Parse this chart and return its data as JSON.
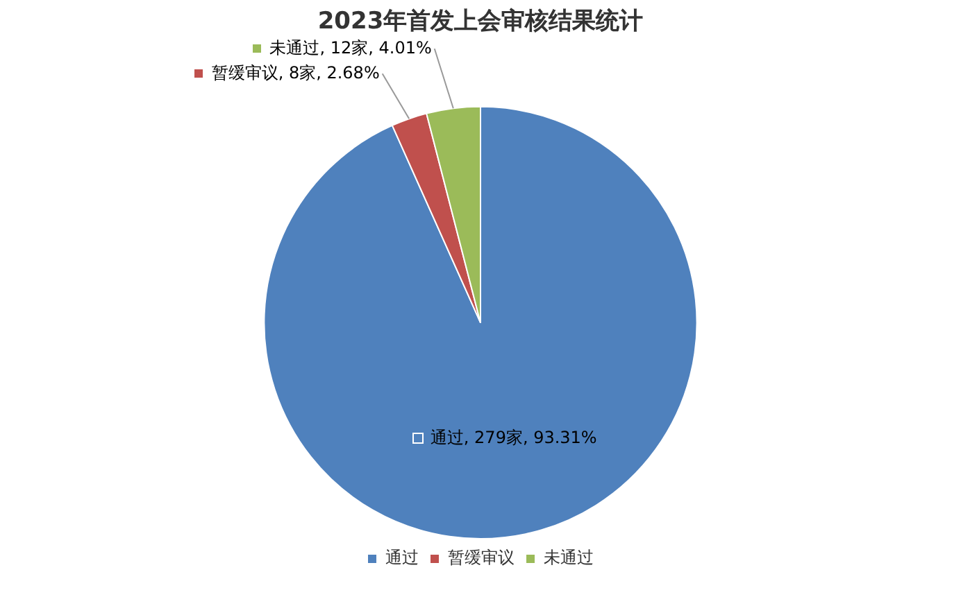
{
  "chart_data": {
    "type": "pie",
    "title": "2023年首发上会审核结果统计",
    "categories": [
      "通过",
      "暂缓审议",
      "未通过"
    ],
    "values": [
      279,
      8,
      12
    ],
    "colors": [
      "#4f81bd",
      "#c0504d",
      "#9bbb59"
    ],
    "value_labels": [
      "通过, 279家, 93.31%",
      "暂缓审议, 8家, 2.68%",
      "未通过, 12家, 4.01%"
    ],
    "legend": "bottom"
  }
}
